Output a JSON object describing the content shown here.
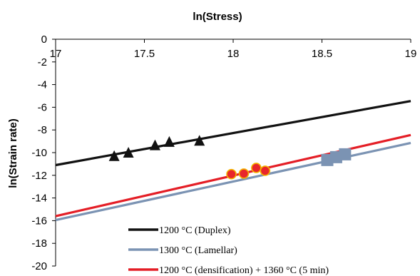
{
  "chart_data": {
    "type": "scatter",
    "title": "ln(Stress)",
    "xlabel": "",
    "ylabel": "ln(Strain rate)",
    "xlim": [
      17,
      19
    ],
    "ylim": [
      -20,
      0
    ],
    "x_ticks": [
      "17",
      "17.5",
      "18",
      "18.5",
      "19"
    ],
    "y_ticks": [
      "0",
      "-2",
      "-4",
      "-6",
      "-8",
      "-10",
      "-12",
      "-14",
      "-16",
      "-18",
      "-20"
    ],
    "x_axis_position": "top",
    "grid": false,
    "legend_position": "bottom-center",
    "series": [
      {
        "name": "1200 °C (Duplex)",
        "color": "#111111",
        "marker": "triangle",
        "points": [
          [
            17.33,
            -10.3
          ],
          [
            17.41,
            -10.0
          ],
          [
            17.56,
            -9.35
          ],
          [
            17.64,
            -9.05
          ],
          [
            17.81,
            -8.95
          ]
        ],
        "fit_line": [
          [
            17.0,
            -11.1
          ],
          [
            19.0,
            -5.45
          ]
        ]
      },
      {
        "name": "1300 °C (Lamellar)",
        "color": "#7b93b3",
        "marker": "square",
        "points": [
          [
            18.53,
            -10.65
          ],
          [
            18.58,
            -10.4
          ],
          [
            18.63,
            -10.15
          ]
        ],
        "fit_line": [
          [
            17.0,
            -15.95
          ],
          [
            19.0,
            -9.15
          ]
        ]
      },
      {
        "name": "1200 °C (densification) + 1360 °C (5 min)",
        "color": "#e41e26",
        "marker": "circle",
        "points": [
          [
            17.99,
            -11.9
          ],
          [
            18.06,
            -11.85
          ],
          [
            18.13,
            -11.35
          ],
          [
            18.18,
            -11.6
          ]
        ],
        "fit_line": [
          [
            17.0,
            -15.6
          ],
          [
            19.0,
            -8.45
          ]
        ]
      }
    ]
  }
}
